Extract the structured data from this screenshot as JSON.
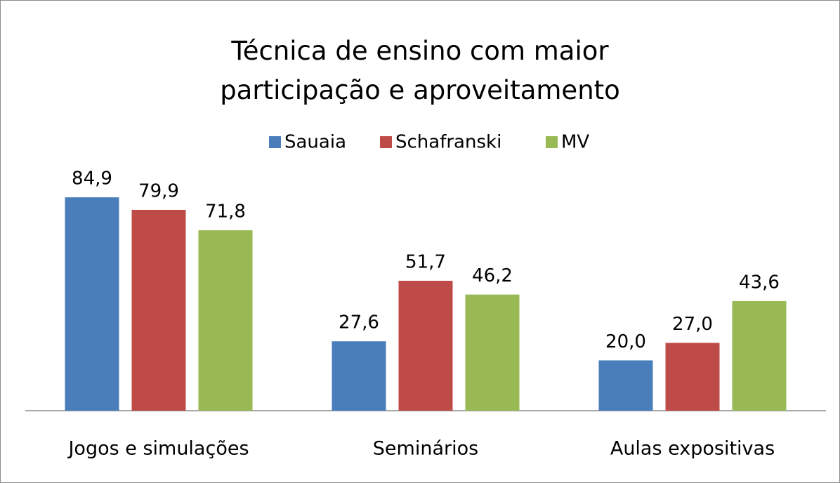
{
  "chart_data": {
    "type": "bar",
    "title": "Técnica de ensino com maior participação e aproveitamento",
    "categories": [
      "Jogos e simulações",
      "Seminários",
      "Aulas expositivas"
    ],
    "series": [
      {
        "name": "Sauaia",
        "color": "#4a7ebb",
        "values": [
          84.9,
          27.6,
          20.0
        ],
        "value_labels": [
          "84,9",
          "27,6",
          "20,0"
        ]
      },
      {
        "name": "Schafranski",
        "color": "#be4b48",
        "values": [
          79.9,
          51.7,
          27.0
        ],
        "value_labels": [
          "79,9",
          "51,7",
          "27,0"
        ]
      },
      {
        "name": "MV",
        "color": "#98b954",
        "values": [
          71.8,
          46.2,
          43.6
        ],
        "value_labels": [
          "71,8",
          "46,2",
          "43,6"
        ]
      }
    ],
    "ylim": [
      0,
      100
    ],
    "legend": "top"
  }
}
